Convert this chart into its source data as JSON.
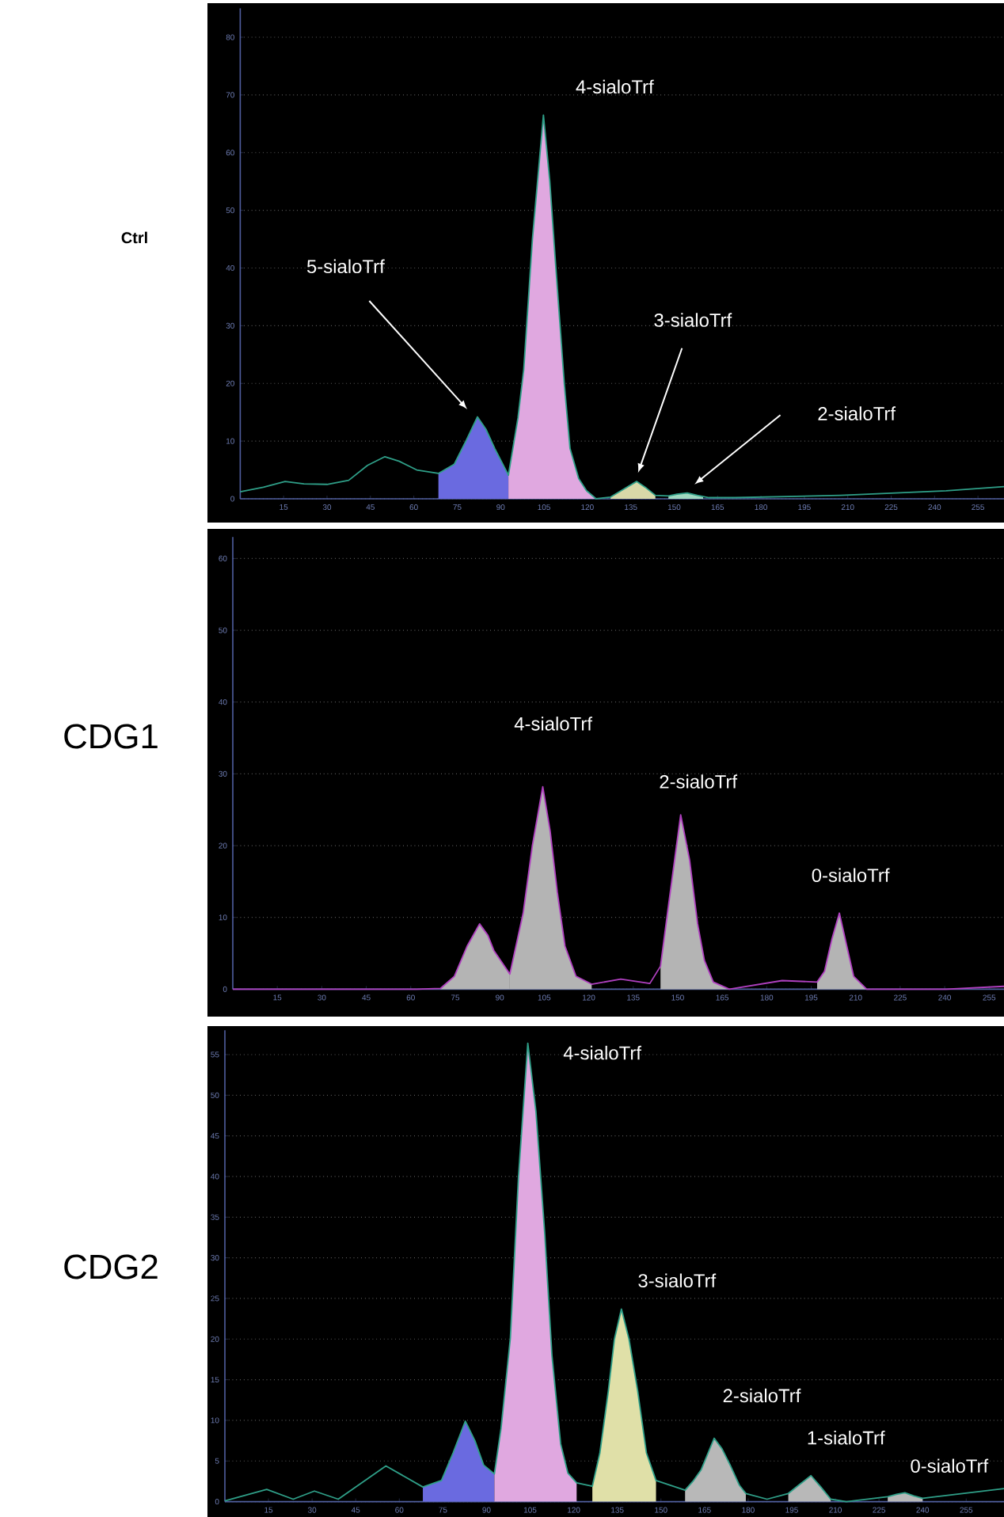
{
  "chart_data": [
    {
      "type": "line",
      "title": "Ctrl",
      "xlim": [
        0,
        264
      ],
      "ylim": [
        0,
        85
      ],
      "xticks": [
        15,
        30,
        45,
        60,
        75,
        90,
        105,
        120,
        135,
        150,
        165,
        180,
        195,
        210,
        225,
        240,
        255
      ],
      "yticks": [
        0,
        10,
        20,
        30,
        40,
        50,
        60,
        70,
        80
      ],
      "grid": "y",
      "series": [
        {
          "type": "area",
          "color": "#6a6ae0",
          "x": [
            68.5,
            74,
            78,
            82,
            85,
            88,
            92.7
          ],
          "values": [
            4.4,
            6,
            10,
            14.2,
            12,
            8.7,
            4.1
          ]
        },
        {
          "type": "area",
          "color": "#e0a8e0",
          "x": [
            92.7,
            96,
            98,
            101,
            104.8,
            107,
            109,
            112,
            114,
            117,
            119.7,
            123
          ],
          "values": [
            4.1,
            14,
            22.4,
            45,
            66.5,
            55,
            40.7,
            20,
            8.7,
            3.5,
            1.4,
            0
          ]
        },
        {
          "type": "area",
          "color": "#d8d8a8",
          "x": [
            128,
            132,
            137,
            140,
            143.5
          ],
          "values": [
            0.3,
            1.5,
            3.0,
            2.0,
            0.6
          ]
        },
        {
          "type": "area",
          "color": "#9fd8c0",
          "x": [
            148,
            151,
            154.5,
            158,
            160
          ],
          "values": [
            0.5,
            0.8,
            1.0,
            0.6,
            0.3
          ]
        },
        {
          "type": "line",
          "color": "#2f9f88",
          "x": [
            0,
            8,
            15.5,
            22,
            30,
            37.5,
            44,
            50,
            55,
            61,
            68.5,
            74,
            78,
            82,
            85,
            88,
            92.7,
            96,
            98,
            101,
            104.8,
            107,
            109,
            112,
            114,
            117,
            119.7,
            123,
            128,
            132,
            137,
            140,
            143.5,
            148,
            151,
            154.5,
            158,
            162,
            171,
            207.5,
            244,
            264
          ],
          "values": [
            1.2,
            2.0,
            3.0,
            2.6,
            2.5,
            3.2,
            5.8,
            7.3,
            6.5,
            5.0,
            4.4,
            6,
            10,
            14.2,
            12,
            8.7,
            4.1,
            14,
            22.4,
            45,
            66.5,
            55,
            40.7,
            20,
            8.7,
            3.5,
            1.4,
            0,
            0.3,
            1.5,
            3.0,
            2.0,
            0.6,
            0.5,
            0.8,
            1.0,
            0.6,
            0.2,
            0.2,
            0.6,
            1.4,
            2.1
          ]
        }
      ],
      "annotations": [
        "5-sialoTrf",
        {
          "text": "4-sialoTrf",
          "x": 104.8,
          "y": 66.5
        },
        "3-sialoTrf",
        "2-sialoTrf"
      ]
    },
    {
      "type": "line",
      "title": "CDG1",
      "xlim": [
        0,
        260
      ],
      "ylim": [
        0,
        63
      ],
      "xticks": [
        15,
        30,
        45,
        60,
        75,
        90,
        105,
        120,
        135,
        150,
        165,
        180,
        195,
        210,
        225,
        240,
        255
      ],
      "yticks": [
        0,
        10,
        20,
        30,
        40,
        50,
        60
      ],
      "grid": "y",
      "series": [
        {
          "type": "area",
          "color": "#b4b4b4",
          "x": [
            70,
            74.7,
            79,
            83.2,
            86,
            88,
            93.4
          ],
          "values": [
            0.1,
            1.8,
            6,
            9.1,
            7.5,
            5.4,
            2.1
          ]
        },
        {
          "type": "area",
          "color": "#b4b4b4",
          "x": [
            93.4,
            97.9,
            101,
            104.5,
            107,
            109.4,
            112,
            115.7,
            121
          ],
          "values": [
            2.1,
            10.6,
            20,
            28.2,
            22,
            13.5,
            6,
            1.8,
            0.7
          ]
        },
        {
          "type": "area",
          "color": "#b4b4b4",
          "x": [
            144.2,
            147,
            151,
            154,
            156.7,
            159,
            162,
            167.4
          ],
          "values": [
            3.2,
            12,
            24.3,
            18,
            9.1,
            4,
            1.0,
            0
          ]
        },
        {
          "type": "area",
          "color": "#b4b4b4",
          "x": [
            197,
            199.5,
            202,
            204.5,
            207,
            209.3,
            213.7
          ],
          "values": [
            1.0,
            2.5,
            7,
            10.6,
            6,
            1.8,
            0
          ]
        },
        {
          "type": "line",
          "color": "#b040c0",
          "x": [
            0,
            62,
            70,
            74.7,
            79,
            83.2,
            86,
            88,
            93.4,
            97.9,
            101,
            104.5,
            107,
            109.4,
            112,
            115.7,
            121,
            130.8,
            140.6,
            144.2,
            147,
            151,
            154,
            156.7,
            159,
            162,
            167.4,
            185.2,
            197,
            199.5,
            202,
            204.5,
            207,
            209.3,
            213.7,
            240.5,
            260
          ],
          "values": [
            0,
            0,
            0.1,
            1.8,
            6,
            9.1,
            7.5,
            5.4,
            2.1,
            10.6,
            20,
            28.2,
            22,
            13.5,
            6,
            1.8,
            0.7,
            1.4,
            0.8,
            3.2,
            12,
            24.3,
            18,
            9.1,
            4,
            1.0,
            0,
            1.2,
            1.0,
            2.5,
            7,
            10.6,
            6,
            1.8,
            0,
            0,
            0.4
          ]
        }
      ],
      "annotations": [
        "4-sialoTrf",
        {
          "text": "2-sialoTrf",
          "x": 151,
          "y": 24.3
        },
        {
          "text": "0-sialoTrf",
          "x": 204.5,
          "y": 10.6
        }
      ]
    },
    {
      "type": "line",
      "title": "CDG2",
      "xlim": [
        0,
        268
      ],
      "ylim": [
        0,
        58
      ],
      "xticks": [
        15,
        30,
        45,
        60,
        75,
        90,
        105,
        120,
        135,
        150,
        165,
        180,
        195,
        210,
        225,
        240,
        255
      ],
      "yticks": [
        0,
        5,
        10,
        15,
        20,
        25,
        30,
        35,
        40,
        45,
        50,
        55
      ],
      "grid": "y",
      "series": [
        {
          "type": "area",
          "color": "#6a6ae0",
          "x": [
            68.1,
            74.5,
            78.5,
            82.7,
            86,
            89,
            92.7
          ],
          "values": [
            1.8,
            2.6,
            6,
            9.9,
            7.5,
            4.5,
            3.4
          ]
        },
        {
          "type": "area",
          "color": "#e0a8e0",
          "x": [
            92.7,
            95,
            98.2,
            101,
            104.2,
            107,
            110,
            112.5,
            115.5,
            118,
            121
          ],
          "values": [
            3.4,
            9,
            20.1,
            40,
            56.4,
            48,
            33.1,
            18,
            7.1,
            3.5,
            2.3
          ]
        },
        {
          "type": "area",
          "color": "#e0e0a8",
          "x": [
            126.4,
            129,
            131.9,
            134,
            136.4,
            139,
            142,
            145,
            148.3
          ],
          "values": [
            1.9,
            6,
            13.6,
            20,
            23.7,
            20,
            13.6,
            6,
            2.6
          ]
        },
        {
          "type": "area",
          "color": "#b8b8b8",
          "x": [
            158.3,
            161,
            163.8,
            168.3,
            171,
            173.8,
            177,
            179.2
          ],
          "values": [
            1.4,
            2.5,
            3.9,
            7.8,
            6.5,
            4.5,
            2,
            1.0
          ]
        },
        {
          "type": "area",
          "color": "#b8b8b8",
          "x": [
            193.8,
            198,
            201.6,
            205,
            208.4
          ],
          "values": [
            1.0,
            2.2,
            3.2,
            1.8,
            0.3
          ]
        },
        {
          "type": "area",
          "color": "#b8b8b8",
          "x": [
            228,
            231,
            233.9,
            237,
            240
          ],
          "values": [
            0.6,
            0.9,
            1.1,
            0.7,
            0.4
          ]
        },
        {
          "type": "line",
          "color": "#2f9f88",
          "x": [
            0,
            14.4,
            23.5,
            30.8,
            39,
            55.4,
            68.1,
            74.5,
            78.5,
            82.7,
            86,
            89,
            92.7,
            95,
            98.2,
            101,
            104.2,
            107,
            110,
            112.5,
            115.5,
            118,
            121,
            126.4,
            129,
            131.9,
            134,
            136.4,
            139,
            142,
            145,
            148.3,
            158.3,
            161,
            163.8,
            168.3,
            171,
            173.8,
            177,
            179.2,
            186.5,
            193.8,
            198,
            201.6,
            205,
            208.4,
            213.8,
            228,
            231,
            233.9,
            237,
            240,
            268
          ],
          "values": [
            0.1,
            1.5,
            0.3,
            1.3,
            0.3,
            4.4,
            1.8,
            2.6,
            6,
            9.9,
            7.5,
            4.5,
            3.4,
            9,
            20.1,
            40,
            56.4,
            48,
            33.1,
            18,
            7.1,
            3.5,
            2.3,
            1.9,
            6,
            13.6,
            20,
            23.7,
            20,
            13.6,
            6,
            2.6,
            1.4,
            2.5,
            3.9,
            7.8,
            6.5,
            4.5,
            2,
            1.0,
            0.3,
            1.0,
            2.2,
            3.2,
            1.8,
            0.3,
            0,
            0.6,
            0.9,
            1.1,
            0.7,
            0.4,
            1.6
          ]
        }
      ],
      "annotations": [
        {
          "text": "4-sialoTrf",
          "x": 104.2,
          "y": 56.4
        },
        {
          "text": "3-sialoTrf",
          "x": 136.4,
          "y": 23.7
        },
        {
          "text": "2-sialoTrf",
          "x": 168.3,
          "y": 7.8
        },
        {
          "text": "1-sialoTrf",
          "x": 201.6,
          "y": 3.2
        },
        {
          "text": "0-sialoTrf",
          "x": 233.9,
          "y": 1.1
        }
      ]
    }
  ]
}
